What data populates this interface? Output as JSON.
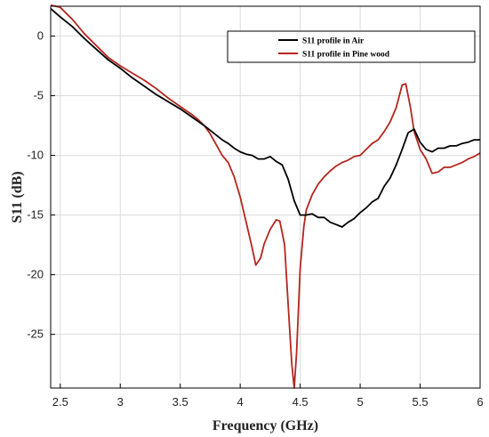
{
  "chart_data": {
    "type": "line",
    "xlabel": "Frequency (GHz)",
    "ylabel": "S11  (dB)",
    "xlim": [
      2.42,
      6.0
    ],
    "ylim": [
      -29.5,
      2.5
    ],
    "xticks": [
      2.5,
      3,
      3.5,
      4,
      4.5,
      5,
      5.5,
      6
    ],
    "yticks": [
      0,
      -5,
      -10,
      -15,
      -20,
      -25
    ],
    "grid": true,
    "legend_position": "top-right",
    "series": [
      {
        "name": "S11 profile in Air",
        "color": "#000000",
        "points": [
          [
            2.42,
            2.3
          ],
          [
            2.5,
            1.6
          ],
          [
            2.6,
            0.8
          ],
          [
            2.7,
            -0.2
          ],
          [
            2.8,
            -1.1
          ],
          [
            2.9,
            -2.0
          ],
          [
            3.0,
            -2.7
          ],
          [
            3.1,
            -3.5
          ],
          [
            3.2,
            -4.2
          ],
          [
            3.3,
            -4.9
          ],
          [
            3.4,
            -5.5
          ],
          [
            3.5,
            -6.1
          ],
          [
            3.6,
            -6.8
          ],
          [
            3.7,
            -7.5
          ],
          [
            3.75,
            -7.9
          ],
          [
            3.8,
            -8.3
          ],
          [
            3.85,
            -8.7
          ],
          [
            3.9,
            -9.0
          ],
          [
            3.95,
            -9.4
          ],
          [
            4.0,
            -9.7
          ],
          [
            4.05,
            -9.9
          ],
          [
            4.1,
            -10.0
          ],
          [
            4.15,
            -10.3
          ],
          [
            4.2,
            -10.3
          ],
          [
            4.25,
            -10.1
          ],
          [
            4.3,
            -10.5
          ],
          [
            4.35,
            -10.8
          ],
          [
            4.4,
            -12.0
          ],
          [
            4.45,
            -13.8
          ],
          [
            4.5,
            -15.0
          ],
          [
            4.55,
            -15.0
          ],
          [
            4.6,
            -14.9
          ],
          [
            4.65,
            -15.2
          ],
          [
            4.7,
            -15.2
          ],
          [
            4.75,
            -15.6
          ],
          [
            4.8,
            -15.8
          ],
          [
            4.85,
            -16.0
          ],
          [
            4.9,
            -15.6
          ],
          [
            4.95,
            -15.3
          ],
          [
            5.0,
            -14.8
          ],
          [
            5.05,
            -14.4
          ],
          [
            5.1,
            -13.9
          ],
          [
            5.15,
            -13.6
          ],
          [
            5.2,
            -12.6
          ],
          [
            5.25,
            -11.9
          ],
          [
            5.3,
            -10.8
          ],
          [
            5.35,
            -9.5
          ],
          [
            5.4,
            -8.1
          ],
          [
            5.45,
            -7.8
          ],
          [
            5.5,
            -8.9
          ],
          [
            5.55,
            -9.5
          ],
          [
            5.6,
            -9.7
          ],
          [
            5.65,
            -9.4
          ],
          [
            5.7,
            -9.4
          ],
          [
            5.75,
            -9.2
          ],
          [
            5.8,
            -9.2
          ],
          [
            5.85,
            -9.0
          ],
          [
            5.9,
            -8.9
          ],
          [
            5.95,
            -8.7
          ],
          [
            6.0,
            -8.7
          ]
        ]
      },
      {
        "name": "S11 profile in Pine wood",
        "color": "#b5261e",
        "points": [
          [
            2.42,
            2.6
          ],
          [
            2.5,
            2.4
          ],
          [
            2.6,
            1.4
          ],
          [
            2.7,
            0.2
          ],
          [
            2.8,
            -0.8
          ],
          [
            2.9,
            -1.8
          ],
          [
            3.0,
            -2.5
          ],
          [
            3.1,
            -3.1
          ],
          [
            3.2,
            -3.7
          ],
          [
            3.3,
            -4.4
          ],
          [
            3.4,
            -5.2
          ],
          [
            3.5,
            -5.9
          ],
          [
            3.6,
            -6.6
          ],
          [
            3.65,
            -7.0
          ],
          [
            3.7,
            -7.5
          ],
          [
            3.75,
            -8.2
          ],
          [
            3.8,
            -9.1
          ],
          [
            3.85,
            -10.0
          ],
          [
            3.9,
            -10.6
          ],
          [
            3.95,
            -11.8
          ],
          [
            4.0,
            -13.5
          ],
          [
            4.05,
            -15.6
          ],
          [
            4.1,
            -17.8
          ],
          [
            4.13,
            -19.2
          ],
          [
            4.17,
            -18.6
          ],
          [
            4.2,
            -17.4
          ],
          [
            4.25,
            -16.2
          ],
          [
            4.3,
            -15.4
          ],
          [
            4.33,
            -15.5
          ],
          [
            4.37,
            -17.5
          ],
          [
            4.4,
            -22.5
          ],
          [
            4.43,
            -27.5
          ],
          [
            4.45,
            -29.5
          ],
          [
            4.47,
            -26.5
          ],
          [
            4.5,
            -19.5
          ],
          [
            4.53,
            -16.0
          ],
          [
            4.55,
            -14.6
          ],
          [
            4.6,
            -13.3
          ],
          [
            4.65,
            -12.4
          ],
          [
            4.7,
            -11.8
          ],
          [
            4.75,
            -11.3
          ],
          [
            4.8,
            -10.9
          ],
          [
            4.85,
            -10.6
          ],
          [
            4.9,
            -10.4
          ],
          [
            4.95,
            -10.1
          ],
          [
            5.0,
            -10.0
          ],
          [
            5.05,
            -9.5
          ],
          [
            5.1,
            -9.0
          ],
          [
            5.15,
            -8.7
          ],
          [
            5.2,
            -8.0
          ],
          [
            5.25,
            -7.2
          ],
          [
            5.3,
            -6.0
          ],
          [
            5.35,
            -4.1
          ],
          [
            5.38,
            -4.0
          ],
          [
            5.42,
            -6.0
          ],
          [
            5.45,
            -8.0
          ],
          [
            5.5,
            -9.5
          ],
          [
            5.55,
            -10.3
          ],
          [
            5.6,
            -11.5
          ],
          [
            5.65,
            -11.4
          ],
          [
            5.7,
            -11.0
          ],
          [
            5.75,
            -11.0
          ],
          [
            5.8,
            -10.8
          ],
          [
            5.85,
            -10.6
          ],
          [
            5.9,
            -10.3
          ],
          [
            5.95,
            -10.1
          ],
          [
            6.0,
            -9.8
          ]
        ]
      }
    ]
  }
}
